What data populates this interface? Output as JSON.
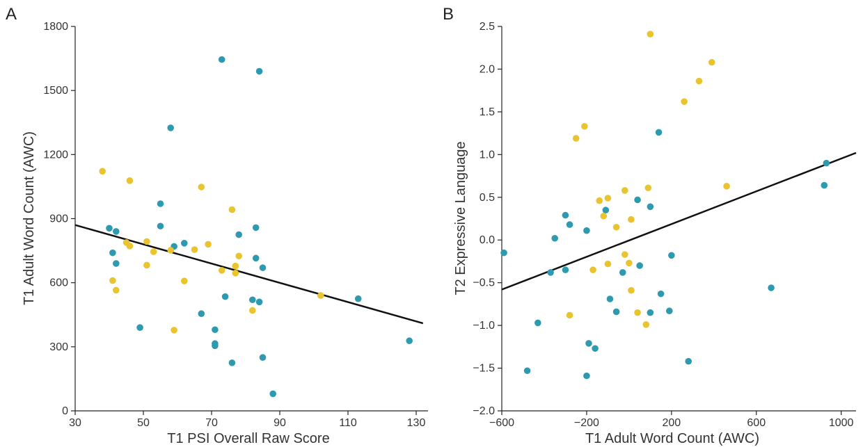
{
  "chart_data": [
    {
      "type": "scatter",
      "panel_label": "A",
      "xlabel": "T1 PSI Overall Raw Score",
      "ylabel": "T1 Adult Word Count (AWC)",
      "xlim": [
        30,
        132
      ],
      "ylim": [
        0,
        1800
      ],
      "xticks": [
        30,
        50,
        70,
        90,
        110,
        130
      ],
      "yticks": [
        0,
        300,
        600,
        900,
        1200,
        1500,
        1800
      ],
      "grid": false,
      "legend": "none",
      "regression_line": {
        "x": [
          30,
          132
        ],
        "y": [
          870,
          410
        ]
      },
      "series": [
        {
          "color": "#2e9aaf",
          "points": [
            [
              73,
              1645
            ],
            [
              84,
              1590
            ],
            [
              58,
              1325
            ],
            [
              55,
              970
            ],
            [
              55,
              865
            ],
            [
              40,
              855
            ],
            [
              42,
              840
            ],
            [
              83,
              858
            ],
            [
              78,
              825
            ],
            [
              59,
              770
            ],
            [
              62,
              785
            ],
            [
              41,
              740
            ],
            [
              42,
              690
            ],
            [
              83,
              715
            ],
            [
              85,
              670
            ],
            [
              74,
              535
            ],
            [
              82,
              520
            ],
            [
              84,
              510
            ],
            [
              113,
              525
            ],
            [
              67,
              455
            ],
            [
              49,
              390
            ],
            [
              71,
              380
            ],
            [
              71,
              315
            ],
            [
              71,
              305
            ],
            [
              128,
              328
            ],
            [
              85,
              250
            ],
            [
              76,
              225
            ],
            [
              88,
              80
            ]
          ]
        },
        {
          "color": "#e9c42e",
          "points": [
            [
              38,
              1122
            ],
            [
              46,
              1078
            ],
            [
              67,
              1048
            ],
            [
              76,
              942
            ],
            [
              51,
              793
            ],
            [
              45,
              788
            ],
            [
              46,
              772
            ],
            [
              69,
              780
            ],
            [
              65,
              755
            ],
            [
              58,
              752
            ],
            [
              53,
              745
            ],
            [
              78,
              725
            ],
            [
              51,
              682
            ],
            [
              77,
              678
            ],
            [
              73,
              658
            ],
            [
              77,
              645
            ],
            [
              41,
              610
            ],
            [
              62,
              608
            ],
            [
              42,
              565
            ],
            [
              102,
              540
            ],
            [
              82,
              470
            ],
            [
              59,
              378
            ]
          ]
        }
      ]
    },
    {
      "type": "scatter",
      "panel_label": "B",
      "xlabel": "T1 Adult Word Count (AWC)",
      "ylabel": "T2 Expressive Language",
      "xlim": [
        -600,
        1070
      ],
      "ylim": [
        -2.0,
        2.5
      ],
      "xticks": [
        -600,
        -200,
        200,
        600,
        1000
      ],
      "yticks": [
        -2.0,
        -1.5,
        -1.0,
        -0.5,
        0.0,
        0.5,
        1.0,
        1.5,
        2.0,
        2.5
      ],
      "ytick_labels": [
        "−2.0",
        "−1.5",
        "−1.0",
        "−0.5",
        "0.0",
        "0.5",
        "1.0",
        "1.5",
        "2.0",
        "2.5"
      ],
      "xtick_labels": [
        "−600",
        "−200",
        "200",
        "600",
        "1000"
      ],
      "grid": false,
      "legend": "none",
      "regression_line": {
        "x": [
          -600,
          1070
        ],
        "y": [
          -0.58,
          1.02
        ]
      },
      "series": [
        {
          "color": "#2e9aaf",
          "points": [
            [
              -590,
              -0.15
            ],
            [
              -480,
              -1.53
            ],
            [
              -430,
              -0.97
            ],
            [
              -370,
              -0.38
            ],
            [
              -350,
              0.02
            ],
            [
              -300,
              0.29
            ],
            [
              -280,
              0.18
            ],
            [
              -300,
              -0.35
            ],
            [
              -200,
              0.11
            ],
            [
              -190,
              -1.21
            ],
            [
              -200,
              -1.59
            ],
            [
              -160,
              -1.27
            ],
            [
              -110,
              0.35
            ],
            [
              -90,
              -0.69
            ],
            [
              -60,
              -0.84
            ],
            [
              -30,
              -0.38
            ],
            [
              40,
              0.47
            ],
            [
              50,
              -0.3
            ],
            [
              100,
              0.39
            ],
            [
              100,
              -0.85
            ],
            [
              140,
              1.26
            ],
            [
              150,
              -0.63
            ],
            [
              190,
              -0.83
            ],
            [
              200,
              -0.18
            ],
            [
              280,
              -1.42
            ],
            [
              670,
              -0.56
            ],
            [
              920,
              0.64
            ],
            [
              930,
              0.9
            ]
          ]
        },
        {
          "color": "#e9c42e",
          "points": [
            [
              100,
              2.41
            ],
            [
              390,
              2.08
            ],
            [
              330,
              1.86
            ],
            [
              260,
              1.62
            ],
            [
              -210,
              1.33
            ],
            [
              -250,
              1.19
            ],
            [
              -60,
              0.15
            ],
            [
              -140,
              0.46
            ],
            [
              -100,
              0.49
            ],
            [
              -20,
              0.58
            ],
            [
              90,
              0.61
            ],
            [
              460,
              0.63
            ],
            [
              -120,
              0.28
            ],
            [
              10,
              0.24
            ],
            [
              -20,
              -0.17
            ],
            [
              0,
              -0.27
            ],
            [
              -100,
              -0.28
            ],
            [
              -170,
              -0.35
            ],
            [
              10,
              -0.59
            ],
            [
              40,
              -0.85
            ],
            [
              80,
              -0.99
            ],
            [
              -280,
              -0.88
            ]
          ]
        }
      ]
    }
  ]
}
